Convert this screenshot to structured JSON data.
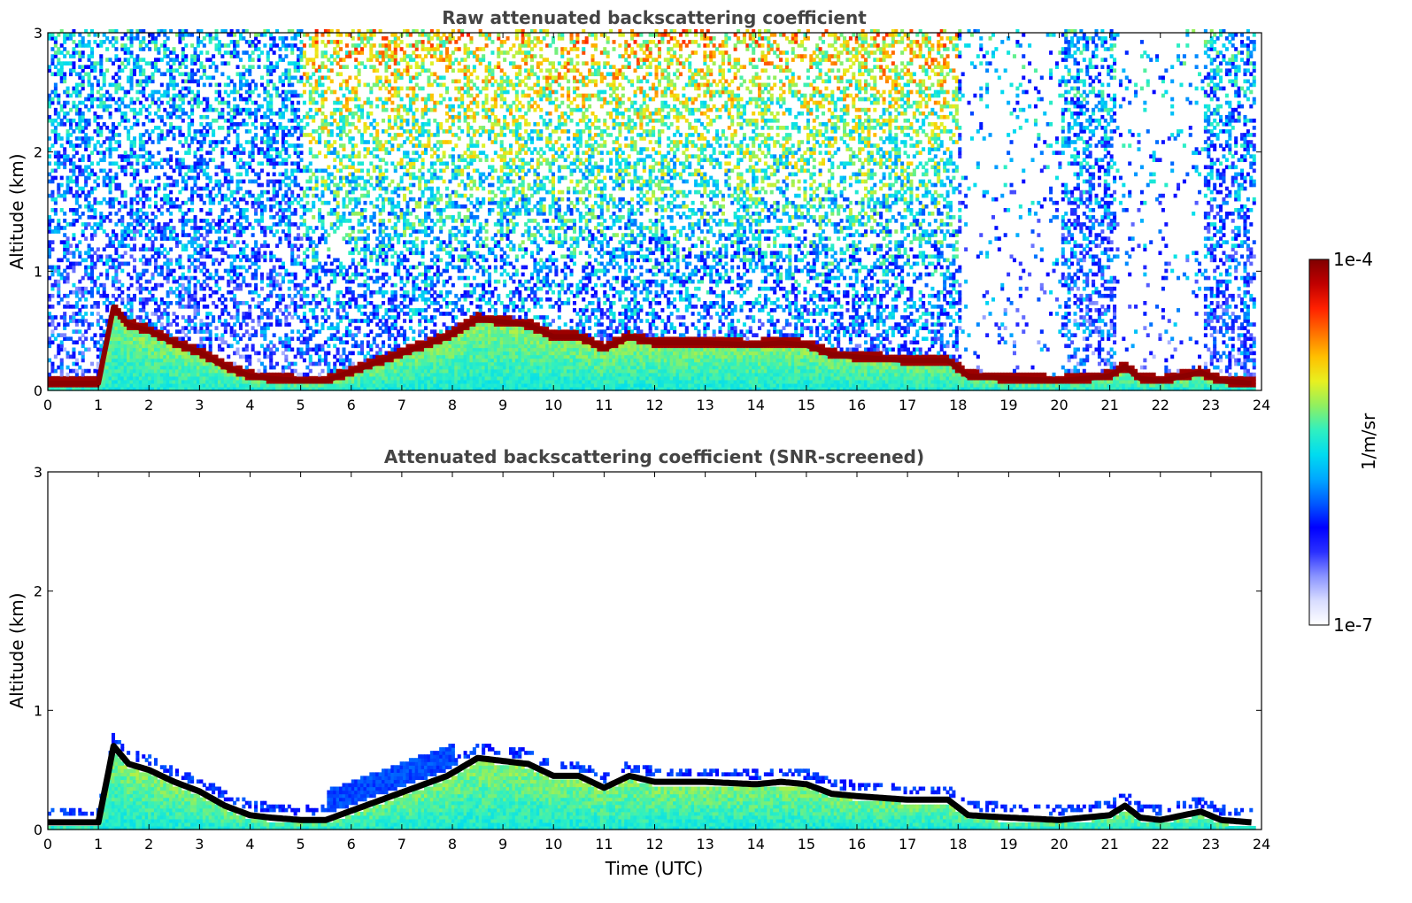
{
  "chart_data": [
    {
      "type": "heatmap",
      "title": "Raw attenuated backscattering coefficient",
      "xlabel": "",
      "ylabel": "Altitude (km)",
      "xlim": [
        0,
        24
      ],
      "ylim": [
        0,
        3
      ],
      "xticks": [
        "0",
        "1",
        "2",
        "3",
        "4",
        "5",
        "6",
        "7",
        "8",
        "9",
        "10",
        "11",
        "12",
        "13",
        "14",
        "15",
        "16",
        "17",
        "18",
        "19",
        "20",
        "21",
        "22",
        "23",
        "24"
      ],
      "yticks": [
        "0",
        "1",
        "2",
        "3"
      ],
      "layer_height_km": [
        [
          0.0,
          0.06
        ],
        [
          1.0,
          0.06
        ],
        [
          1.3,
          0.7
        ],
        [
          1.6,
          0.55
        ],
        [
          2.0,
          0.5
        ],
        [
          2.5,
          0.4
        ],
        [
          3.0,
          0.32
        ],
        [
          3.5,
          0.2
        ],
        [
          4.0,
          0.12
        ],
        [
          4.4,
          0.1
        ],
        [
          5.0,
          0.08
        ],
        [
          5.5,
          0.08
        ],
        [
          7.9,
          0.45
        ],
        [
          8.5,
          0.6
        ],
        [
          9.5,
          0.55
        ],
        [
          10.0,
          0.45
        ],
        [
          10.5,
          0.45
        ],
        [
          11.0,
          0.35
        ],
        [
          11.5,
          0.45
        ],
        [
          12.0,
          0.4
        ],
        [
          12.5,
          0.4
        ],
        [
          13.0,
          0.4
        ],
        [
          14.0,
          0.38
        ],
        [
          14.5,
          0.4
        ],
        [
          15.0,
          0.38
        ],
        [
          15.5,
          0.3
        ],
        [
          16.0,
          0.28
        ],
        [
          17.0,
          0.25
        ],
        [
          17.8,
          0.25
        ],
        [
          18.2,
          0.12
        ],
        [
          19.0,
          0.1
        ],
        [
          20.0,
          0.08
        ],
        [
          20.5,
          0.1
        ],
        [
          21.0,
          0.12
        ],
        [
          21.3,
          0.2
        ],
        [
          21.6,
          0.1
        ],
        [
          22.0,
          0.08
        ],
        [
          22.8,
          0.15
        ],
        [
          23.2,
          0.08
        ],
        [
          23.8,
          0.06
        ]
      ]
    },
    {
      "type": "heatmap",
      "title": "Attenuated backscattering coefficient (SNR-screened)",
      "xlabel": "Time (UTC)",
      "ylabel": "Altitude (km)",
      "xlim": [
        0,
        24
      ],
      "ylim": [
        0,
        3
      ],
      "xticks": [
        "0",
        "1",
        "2",
        "3",
        "4",
        "5",
        "6",
        "7",
        "8",
        "9",
        "10",
        "11",
        "12",
        "13",
        "14",
        "15",
        "16",
        "17",
        "18",
        "19",
        "20",
        "21",
        "22",
        "23",
        "24"
      ],
      "yticks": [
        "0",
        "1",
        "2",
        "3"
      ],
      "layer_height_km": [
        [
          0.0,
          0.06
        ],
        [
          1.0,
          0.06
        ],
        [
          1.3,
          0.7
        ],
        [
          1.6,
          0.55
        ],
        [
          2.0,
          0.5
        ],
        [
          2.5,
          0.4
        ],
        [
          3.0,
          0.32
        ],
        [
          3.5,
          0.2
        ],
        [
          4.0,
          0.12
        ],
        [
          4.4,
          0.1
        ],
        [
          5.0,
          0.08
        ],
        [
          5.5,
          0.08
        ],
        [
          7.9,
          0.45
        ],
        [
          8.5,
          0.6
        ],
        [
          9.5,
          0.55
        ],
        [
          10.0,
          0.45
        ],
        [
          10.5,
          0.45
        ],
        [
          11.0,
          0.35
        ],
        [
          11.5,
          0.45
        ],
        [
          12.0,
          0.4
        ],
        [
          12.5,
          0.4
        ],
        [
          13.0,
          0.4
        ],
        [
          14.0,
          0.38
        ],
        [
          14.5,
          0.4
        ],
        [
          15.0,
          0.38
        ],
        [
          15.5,
          0.3
        ],
        [
          16.0,
          0.28
        ],
        [
          17.0,
          0.25
        ],
        [
          17.8,
          0.25
        ],
        [
          18.2,
          0.12
        ],
        [
          19.0,
          0.1
        ],
        [
          20.0,
          0.08
        ],
        [
          20.5,
          0.1
        ],
        [
          21.0,
          0.12
        ],
        [
          21.3,
          0.2
        ],
        [
          21.6,
          0.1
        ],
        [
          22.0,
          0.08
        ],
        [
          22.8,
          0.15
        ],
        [
          23.2,
          0.08
        ],
        [
          23.8,
          0.06
        ]
      ]
    }
  ],
  "colorbar": {
    "label": "1/m/sr",
    "max_label": "1e-4",
    "min_label": "1e-7",
    "scale": "log",
    "colors": [
      "#ffffff",
      "#d8dcff",
      "#8a94ff",
      "#2a30ff",
      "#0000ff",
      "#005aff",
      "#00a8ff",
      "#00dcf0",
      "#30f0c0",
      "#90f060",
      "#e8f020",
      "#ffc000",
      "#ff7000",
      "#ff2000",
      "#c00000",
      "#800000"
    ]
  }
}
